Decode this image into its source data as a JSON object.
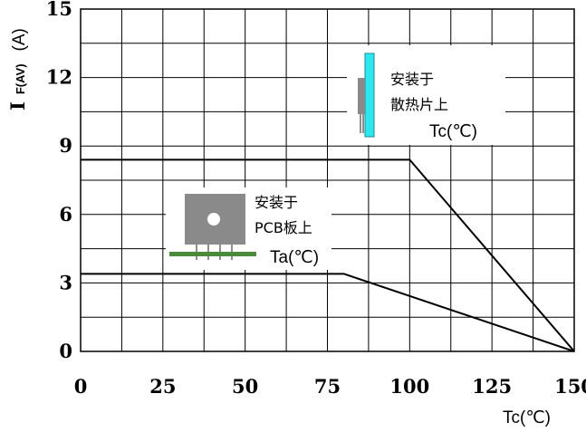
{
  "chart_data": {
    "type": "line",
    "xlabel": "Tc(℃)",
    "ylabel": {
      "main": "I",
      "subscript": "F(AV)",
      "unit": "(A)"
    },
    "xlim": [
      0,
      150
    ],
    "ylim": [
      0,
      15
    ],
    "xticks": [
      0,
      25,
      50,
      75,
      100,
      125,
      150
    ],
    "xtick_labels": [
      "0",
      "25",
      "50",
      "75",
      "100",
      "125",
      "150"
    ],
    "yticks": [
      0,
      3,
      6,
      9,
      12,
      15
    ],
    "ytick_labels": [
      "0",
      "3",
      "6",
      "9",
      "12",
      "15"
    ],
    "grid": true,
    "series": [
      {
        "x": [
          0,
          100,
          150
        ],
        "y": [
          8.4,
          8.4,
          0
        ]
      },
      {
        "x": [
          0,
          80,
          150
        ],
        "y": [
          3.4,
          3.4,
          0
        ]
      }
    ],
    "annotations": {
      "heatsink": {
        "line1": "安装于",
        "line2": "散热片上",
        "temp_label": "Tc(℃)"
      },
      "pcb": {
        "line1": "安装于",
        "line2": "PCB板上",
        "temp_label": "Ta(℃)"
      }
    },
    "colors": {
      "heatsink": "#2ee6ee",
      "device_body": "#8a8a8a",
      "pcb_board": "#4a8a3a",
      "grid": "#000000"
    }
  }
}
